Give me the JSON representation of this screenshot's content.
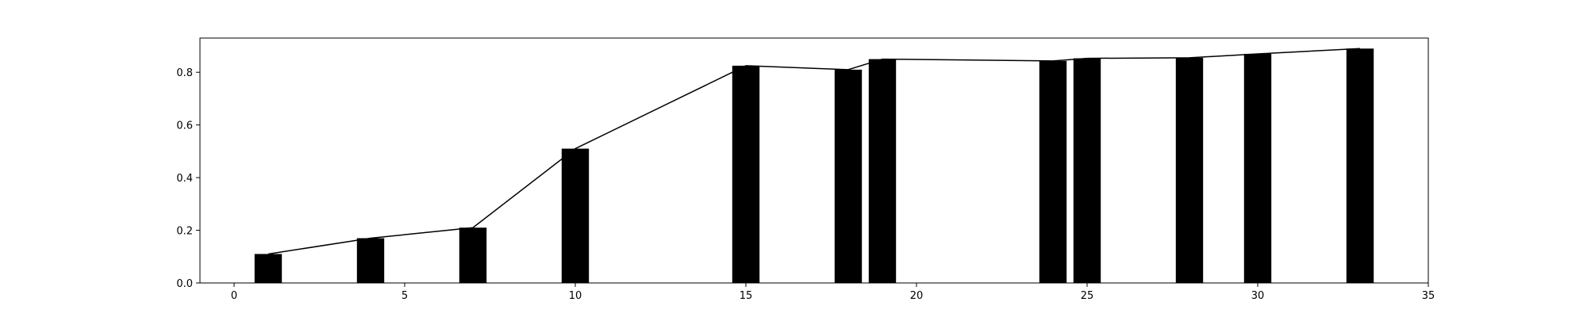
{
  "chart_data": {
    "type": "bar",
    "title": "",
    "xlabel": "",
    "ylabel": "",
    "xlim": [
      -1,
      35
    ],
    "ylim": [
      0,
      0.93
    ],
    "x_ticks": [
      "0",
      "5",
      "10",
      "15",
      "20",
      "25",
      "30",
      "35"
    ],
    "y_ticks": [
      "0.0",
      "0.2",
      "0.4",
      "0.6",
      "0.8"
    ],
    "x": [
      1,
      4,
      7,
      10,
      15,
      18,
      19,
      24,
      25,
      28,
      30,
      33
    ],
    "values": [
      0.11,
      0.17,
      0.21,
      0.51,
      0.825,
      0.81,
      0.85,
      0.843,
      0.853,
      0.855,
      0.87,
      0.89
    ],
    "bar_color": "#000000",
    "line_color": "#000000",
    "grid": false,
    "legend": false
  }
}
